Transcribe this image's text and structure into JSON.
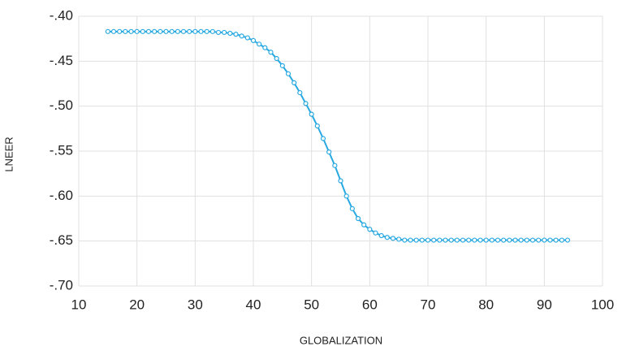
{
  "chart_data": {
    "type": "line",
    "x_label": "GLOBALIZATION",
    "y_label": "LNEER",
    "x": [
      15,
      16,
      17,
      18,
      19,
      20,
      21,
      22,
      23,
      24,
      25,
      26,
      27,
      28,
      29,
      30,
      31,
      32,
      33,
      34,
      35,
      36,
      37,
      38,
      39,
      40,
      41,
      42,
      43,
      44,
      45,
      46,
      47,
      48,
      49,
      50,
      51,
      52,
      53,
      54,
      55,
      56,
      57,
      58,
      59,
      60,
      61,
      62,
      63,
      64,
      65,
      66,
      67,
      68,
      69,
      70,
      71,
      72,
      73,
      74,
      75,
      76,
      77,
      78,
      79,
      80,
      81,
      82,
      83,
      84,
      85,
      86,
      87,
      88,
      89,
      90,
      91,
      92,
      93,
      94
    ],
    "series": [
      {
        "name": "LNEER",
        "color": "#29a9e1",
        "values": [
          -0.417,
          -0.417,
          -0.417,
          -0.417,
          -0.417,
          -0.417,
          -0.417,
          -0.417,
          -0.417,
          -0.417,
          -0.417,
          -0.417,
          -0.417,
          -0.417,
          -0.417,
          -0.417,
          -0.417,
          -0.417,
          -0.417,
          -0.418,
          -0.418,
          -0.419,
          -0.42,
          -0.422,
          -0.424,
          -0.427,
          -0.431,
          -0.435,
          -0.44,
          -0.447,
          -0.455,
          -0.464,
          -0.474,
          -0.485,
          -0.497,
          -0.509,
          -0.522,
          -0.536,
          -0.551,
          -0.566,
          -0.583,
          -0.6,
          -0.614,
          -0.625,
          -0.632,
          -0.637,
          -0.641,
          -0.644,
          -0.646,
          -0.647,
          -0.648,
          -0.649,
          -0.649,
          -0.649,
          -0.649,
          -0.649,
          -0.649,
          -0.649,
          -0.649,
          -0.649,
          -0.649,
          -0.649,
          -0.649,
          -0.649,
          -0.649,
          -0.649,
          -0.649,
          -0.649,
          -0.649,
          -0.649,
          -0.649,
          -0.649,
          -0.649,
          -0.649,
          -0.649,
          -0.649,
          -0.649,
          -0.649,
          -0.649,
          -0.649
        ]
      }
    ],
    "xlim": [
      10,
      100
    ],
    "xticks": [
      10,
      20,
      30,
      40,
      50,
      60,
      70,
      80,
      90,
      100
    ],
    "ylim": [
      -0.7,
      -0.4
    ],
    "yticks": [
      {
        "value": -0.7,
        "label": "-.70"
      },
      {
        "value": -0.65,
        "label": "-.65"
      },
      {
        "value": -0.6,
        "label": "-.60"
      },
      {
        "value": -0.55,
        "label": "-.55"
      },
      {
        "value": -0.5,
        "label": "-.50"
      },
      {
        "value": -0.45,
        "label": "-.45"
      },
      {
        "value": -0.4,
        "label": "-.40"
      }
    ],
    "grid": true
  }
}
